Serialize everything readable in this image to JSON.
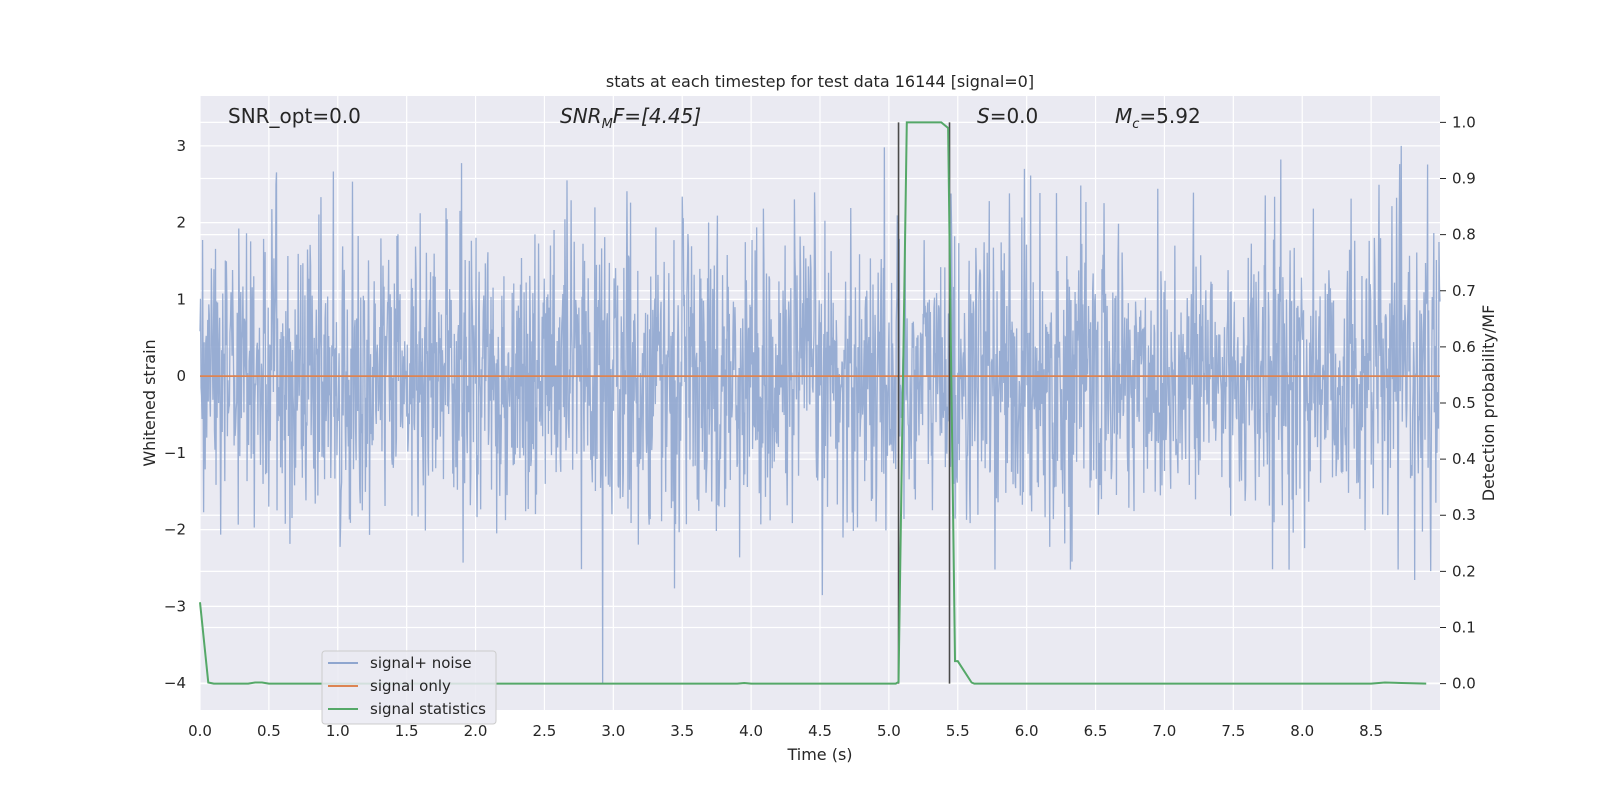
{
  "chart_data": {
    "type": "line",
    "title": "stats at each timestep for test data 16144 [signal=0]",
    "xlabel": "Time (s)",
    "ylabel": "Whitened strain",
    "y2label": "Detection probability/MF",
    "xlim": [
      0.0,
      9.0
    ],
    "ylim": [
      -4.35,
      3.65
    ],
    "y2lim": [
      -0.047,
      1.047
    ],
    "xticks": [
      0.0,
      0.5,
      1.0,
      1.5,
      2.0,
      2.5,
      3.0,
      3.5,
      4.0,
      4.5,
      5.0,
      5.5,
      6.0,
      6.5,
      7.0,
      7.5,
      8.0,
      8.5
    ],
    "xtick_labels": [
      "0.0",
      "0.5",
      "1.0",
      "1.5",
      "2.0",
      "2.5",
      "3.0",
      "3.5",
      "4.0",
      "4.5",
      "5.0",
      "5.5",
      "6.0",
      "6.5",
      "7.0",
      "7.5",
      "8.0",
      "8.5"
    ],
    "yticks": [
      3,
      2,
      1,
      0,
      -1,
      -2,
      -3,
      -4
    ],
    "ytick_labels": [
      "3",
      "2",
      "1",
      "0",
      "−1",
      "−2",
      "−3",
      "−4"
    ],
    "y2ticks": [
      1.0,
      0.9,
      0.8,
      0.7,
      0.6,
      0.5,
      0.4,
      0.3,
      0.2,
      0.1,
      0.0
    ],
    "y2tick_labels": [
      "1.0",
      "0.9",
      "0.8",
      "0.7",
      "0.6",
      "0.5",
      "0.4",
      "0.3",
      "0.2",
      "0.1",
      "0.0"
    ],
    "grid": true,
    "legend_position": "lower-left",
    "annotations": {
      "snr_opt": "SNR_opt=0.0",
      "snr_mf_base": "SNR",
      "snr_mf_sub": "M",
      "snr_mf_rest": "F=[4.45]",
      "s_base": "S",
      "s_rest": "=0.0",
      "mc_base": "M",
      "mc_sub": "c",
      "mc_rest": "=5.92"
    },
    "series": [
      {
        "name": "signal+ noise",
        "color": "#8fa6cf",
        "axis": "left",
        "description_of_shape": "dense noise filling approx -2 to 2, spikes to about +3 and -4",
        "envelope": {
          "typical_low": -2.0,
          "typical_high": 2.0,
          "peak_high": 3.0,
          "peak_low": -4.0
        }
      },
      {
        "name": "signal only",
        "color": "#dd8452",
        "axis": "left",
        "x": [
          0.0,
          9.0
        ],
        "values": [
          0.0,
          0.0
        ]
      },
      {
        "name": "signal statistics",
        "color": "#55a868",
        "axis": "right",
        "x": [
          0.0,
          0.06,
          0.1,
          0.15,
          0.2,
          0.3,
          0.35,
          0.4,
          0.45,
          0.5,
          1.0,
          2.0,
          3.0,
          3.9,
          3.95,
          4.0,
          4.5,
          5.0,
          5.05,
          5.07,
          5.13,
          5.38,
          5.43,
          5.45,
          5.48,
          5.5,
          5.6,
          5.62,
          5.7,
          6.0,
          7.0,
          8.0,
          8.5,
          8.6,
          8.9
        ],
        "values": [
          0.145,
          0.002,
          0.0,
          0.0,
          0.0,
          0.0,
          0.0,
          0.002,
          0.002,
          0.0,
          0.0,
          0.0,
          0.0,
          0.0,
          0.001,
          0.0,
          0.0,
          0.0,
          0.0,
          0.003,
          1.0,
          1.0,
          0.99,
          0.6,
          0.04,
          0.04,
          0.002,
          0.0,
          0.0,
          0.0,
          0.0,
          0.0,
          0.0,
          0.002,
          0.0
        ]
      }
    ],
    "vertical_markers": {
      "color": "#4a4a4a",
      "x": [
        5.07,
        5.44
      ],
      "y2_range": [
        0.0,
        1.0
      ]
    }
  }
}
